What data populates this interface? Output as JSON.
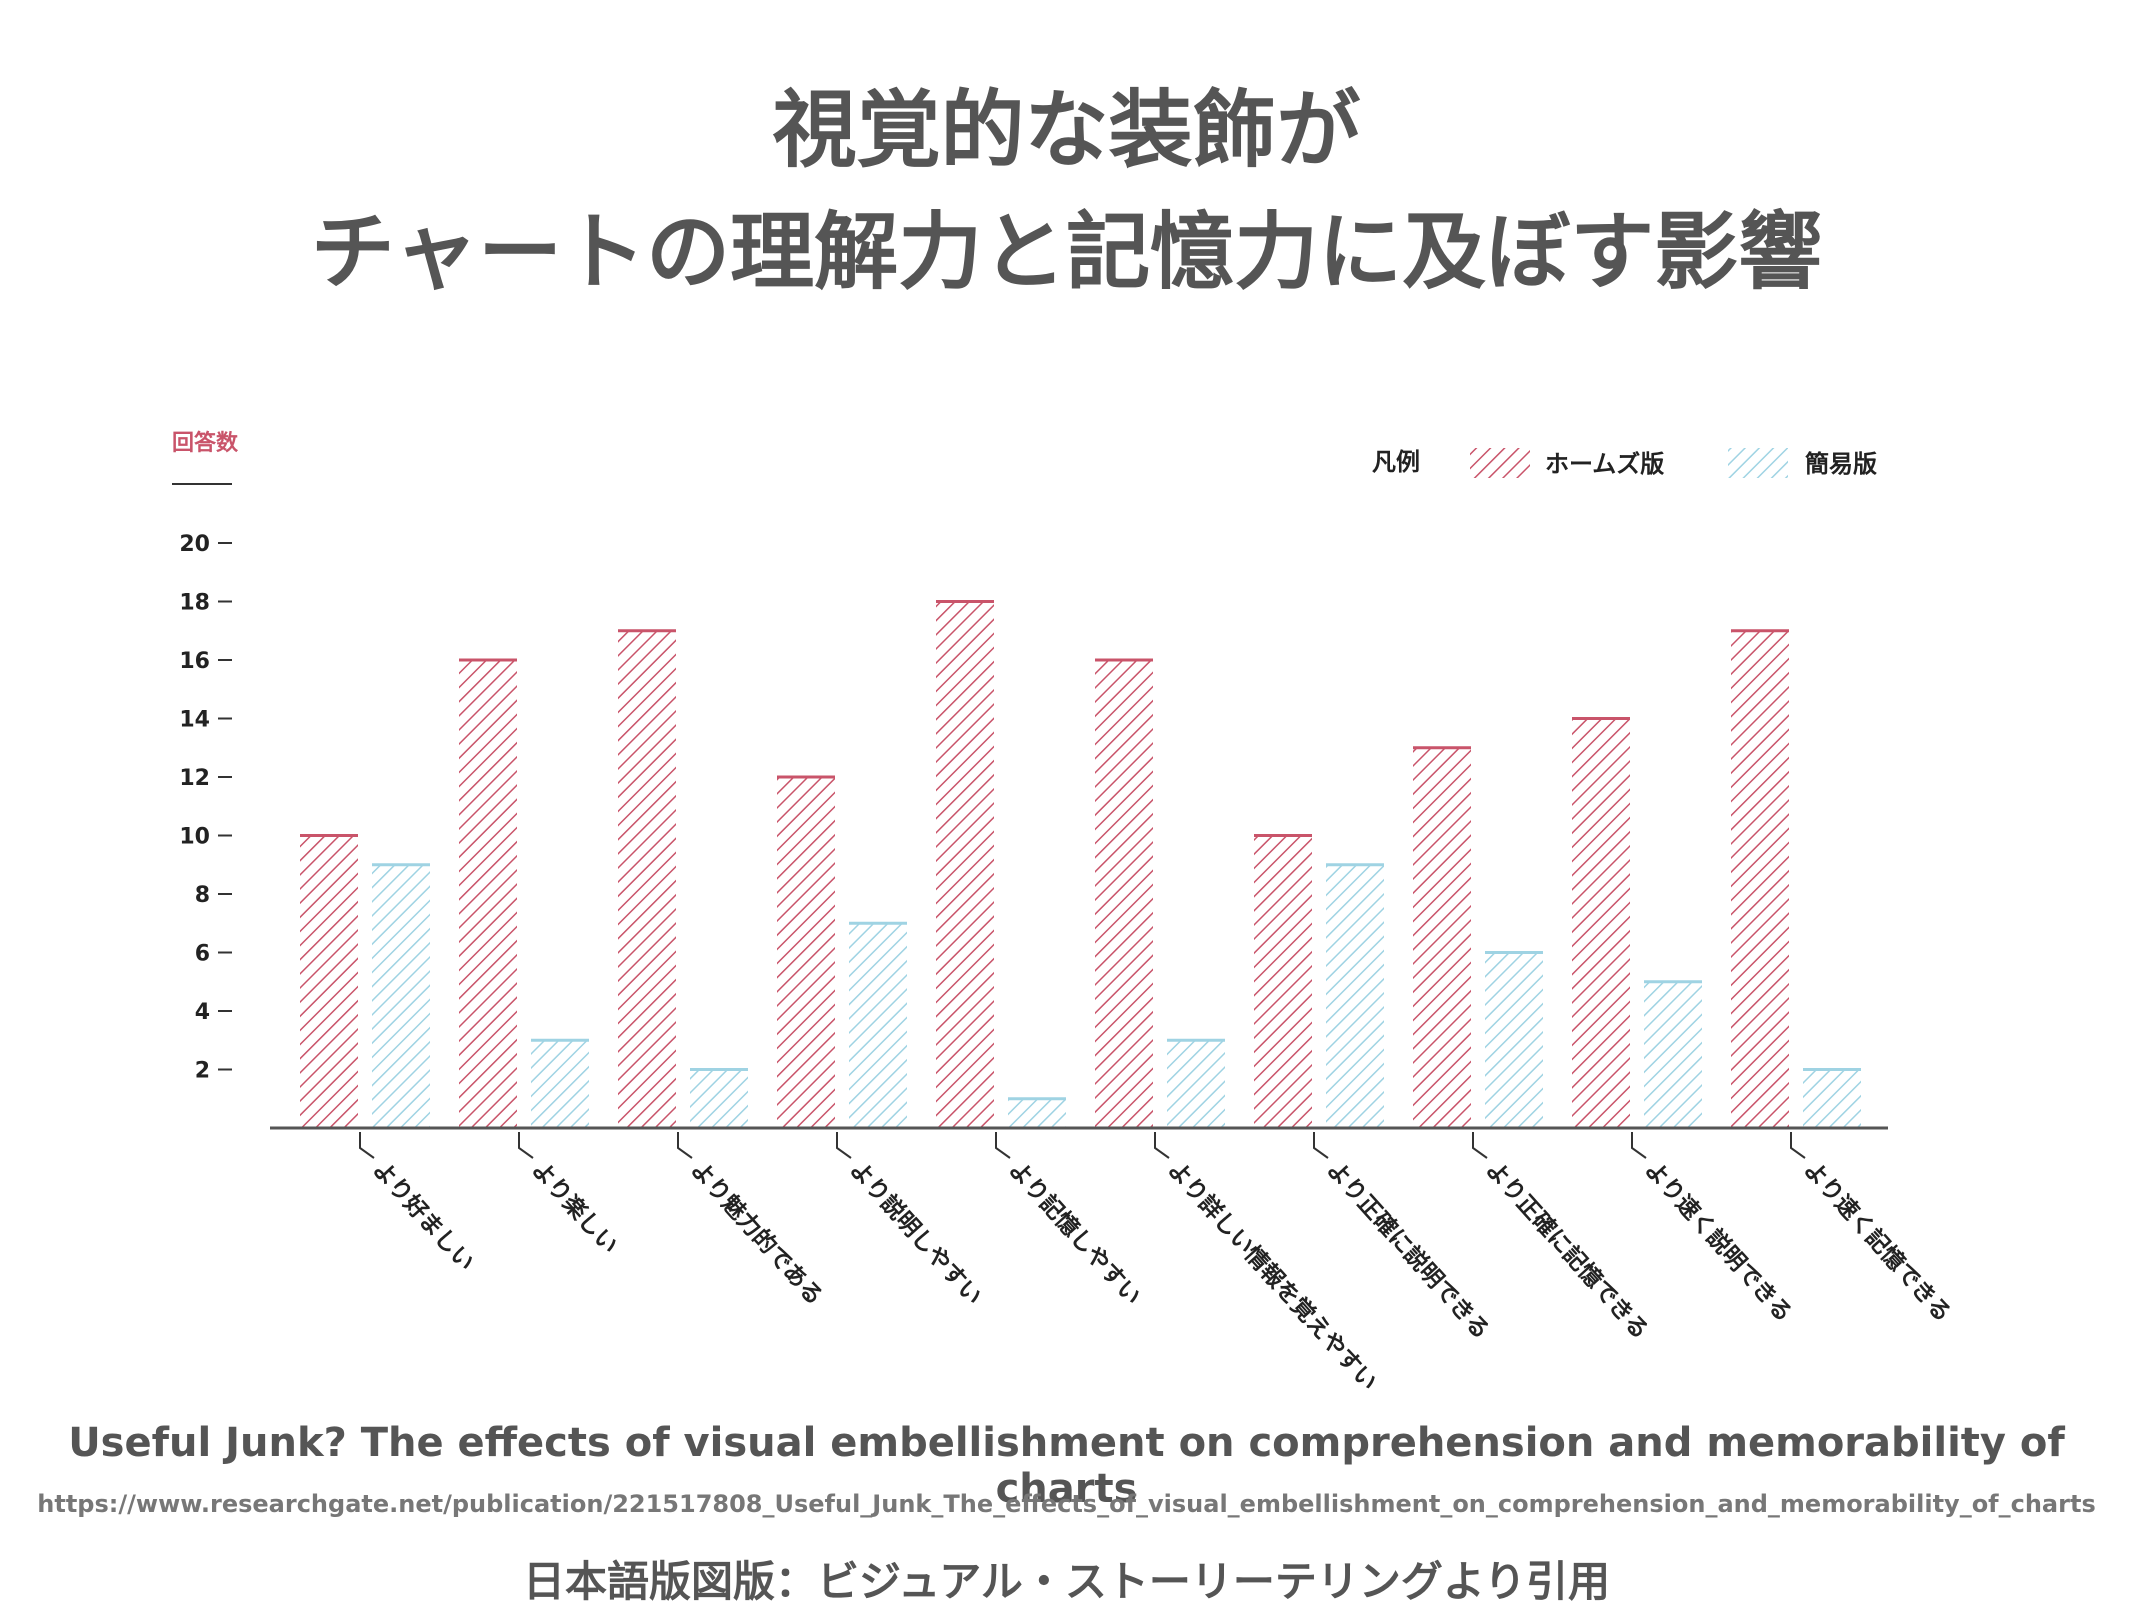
{
  "title_lines": [
    "視覚的な装飾が",
    "チャートの理解力と記憶力に及ぼす影響"
  ],
  "chart_data": {
    "type": "bar",
    "ylabel": "回答数",
    "yticks": [
      2,
      4,
      6,
      8,
      10,
      12,
      14,
      16,
      18,
      20
    ],
    "ylim": [
      0,
      20
    ],
    "grid": false,
    "legend": {
      "title": "凡例",
      "placement": "top-right",
      "entries": [
        "ホームズ版",
        "簡易版"
      ]
    },
    "categories": [
      "より好ましい",
      "より楽しい",
      "より魅力的である",
      "より説明しやすい",
      "より記憶しやすい",
      "より詳しい情報を覚えやすい",
      "より正確に説明できる",
      "より正確に記憶できる",
      "より速く説明できる",
      "より速く記憶できる"
    ],
    "series": [
      {
        "name": "ホームズ版",
        "color": "#c9546a",
        "values": [
          10,
          16,
          17,
          12,
          18,
          16,
          10,
          13,
          14,
          17
        ]
      },
      {
        "name": "簡易版",
        "color": "#9fd3e3",
        "values": [
          9,
          3,
          2,
          7,
          1,
          3,
          9,
          6,
          5,
          2
        ]
      }
    ]
  },
  "colors": {
    "ylabel": "#c9546a",
    "axis": "#555555",
    "text": "#222222"
  },
  "footer": {
    "paper_title": "Useful Junk? The effects of visual embellishment on comprehension and memorability of charts",
    "paper_url": "https://www.researchgate.net/publication/221517808_Useful_Junk_The_effects_of_visual_embellishment_on_comprehension_and_memorability_of_charts",
    "credit": "日本語版図版：ビジュアル・ストーリーテリングより引用"
  }
}
